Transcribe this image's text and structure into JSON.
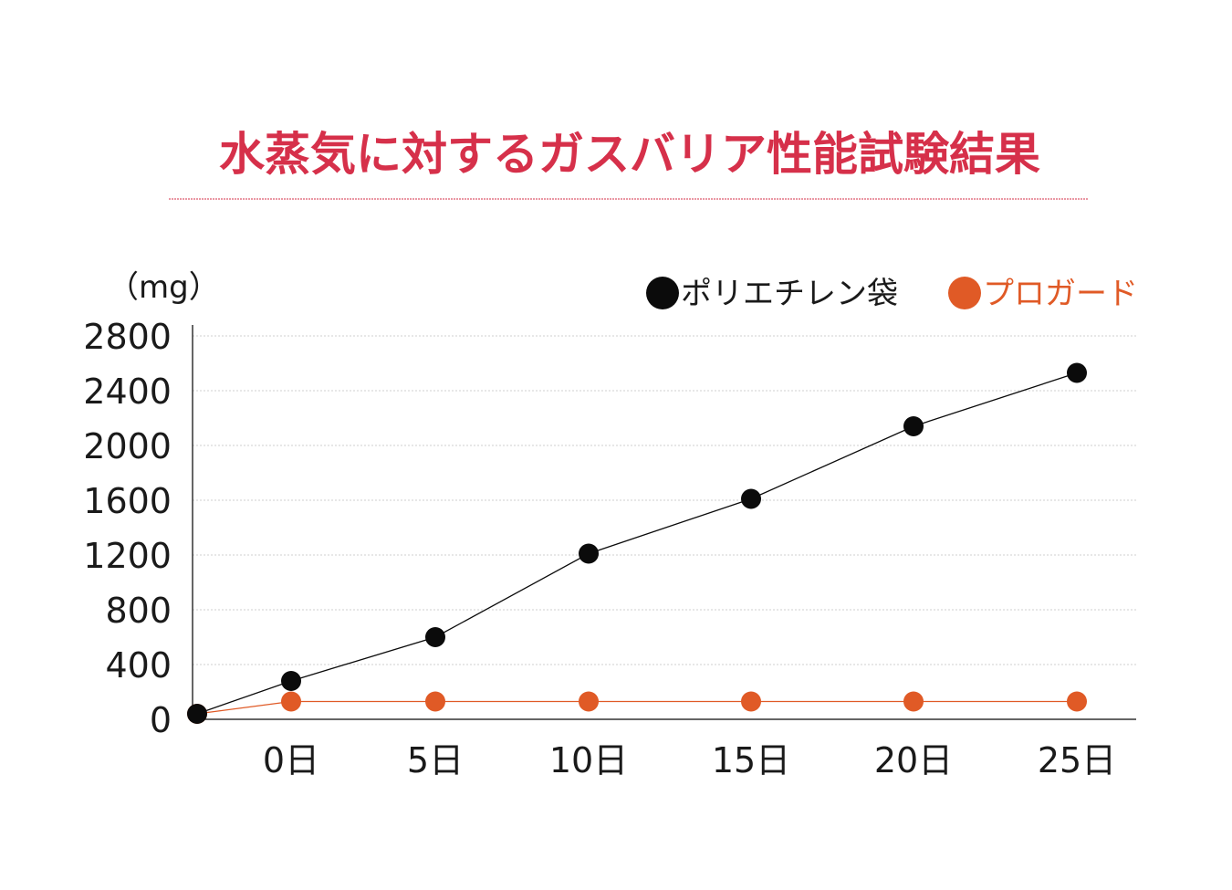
{
  "title": "水蒸気に対するガスバリア性能試験結果",
  "colors": {
    "title": "#d6304a",
    "title_rule": "#d6304a",
    "axis": "#333333",
    "grid": "#cfcfcf",
    "text": "#1a1a1a",
    "polyethylene": "#0b0b0b",
    "proguard": "#e05a26"
  },
  "chart_data": {
    "type": "line",
    "ylabel": "（mg）",
    "ylim": [
      0,
      2800
    ],
    "yticks": [
      "0",
      "400",
      "800",
      "1200",
      "1600",
      "2000",
      "2400",
      "2800"
    ],
    "ytick_values": [
      0,
      400,
      800,
      1200,
      1600,
      2000,
      2400,
      2800
    ],
    "categories": [
      "0日",
      "5日",
      "10日",
      "15日",
      "20日",
      "25日"
    ],
    "grid": "horizontal-dotted",
    "legend_position": "top-right",
    "series": [
      {
        "name": "ポリエチレン袋",
        "color": "#0b0b0b",
        "origin_value": 40,
        "values": [
          280,
          600,
          1210,
          1610,
          2140,
          2530
        ]
      },
      {
        "name": "プロガード",
        "color": "#e05a26",
        "origin_value": 40,
        "values": [
          130,
          130,
          130,
          130,
          130,
          130
        ]
      }
    ]
  }
}
